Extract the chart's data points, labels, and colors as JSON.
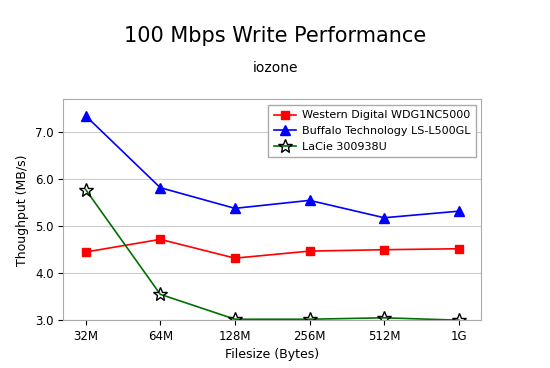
{
  "title": "100 Mbps Write Performance",
  "subtitle": "iozone",
  "xlabel": "Filesize (Bytes)",
  "ylabel": "Thoughput (MB/s)",
  "x_labels": [
    "32M",
    "64M",
    "128M",
    "256M",
    "512M",
    "1G"
  ],
  "x_values": [
    0,
    1,
    2,
    3,
    4,
    5
  ],
  "series": [
    {
      "label": "Western Digital WDG1NC5000",
      "color": "#ff0000",
      "marker": "s",
      "markersize": 6,
      "linewidth": 1.2,
      "values": [
        4.45,
        4.72,
        4.32,
        4.47,
        4.5,
        4.52
      ]
    },
    {
      "label": "Buffalo Technology LS-L500GL",
      "color": "#0000ff",
      "marker": "^",
      "markersize": 7,
      "linewidth": 1.2,
      "values": [
        7.35,
        5.82,
        5.38,
        5.55,
        5.18,
        5.32
      ]
    },
    {
      "label": "LaCie 300938U",
      "color": "#007000",
      "marker": "*",
      "markersize": 10,
      "linewidth": 1.2,
      "values": [
        5.78,
        3.55,
        3.02,
        3.02,
        3.05,
        3.0
      ]
    }
  ],
  "ylim": [
    3.0,
    7.7
  ],
  "yticks": [
    3.0,
    4.0,
    5.0,
    6.0,
    7.0
  ],
  "bg_color": "#ffffff",
  "plot_bg_color": "#ffffff",
  "grid_color": "#cccccc",
  "title_fontsize": 15,
  "subtitle_fontsize": 10,
  "axis_label_fontsize": 9,
  "tick_fontsize": 8.5,
  "legend_fontsize": 8
}
